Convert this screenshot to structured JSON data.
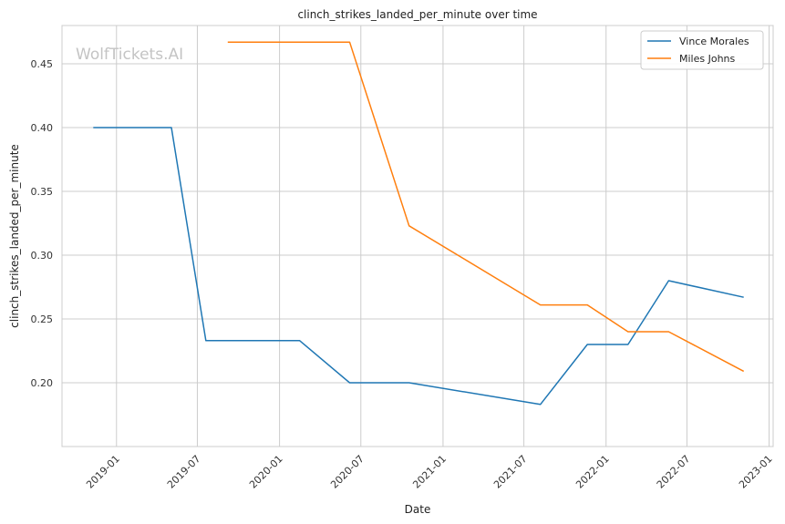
{
  "chart_data": {
    "type": "line",
    "title": "clinch_strikes_landed_per_minute over time",
    "xlabel": "Date",
    "ylabel": "clinch_strikes_landed_per_minute",
    "watermark": "WolfTickets.AI",
    "x_ticks": [
      "2019-01",
      "2019-07",
      "2020-01",
      "2020-07",
      "2021-01",
      "2021-07",
      "2022-01",
      "2022-07",
      "2023-01"
    ],
    "y_ticks": [
      "0.20",
      "0.25",
      "0.30",
      "0.35",
      "0.40",
      "0.45"
    ],
    "ylim": [
      0.15,
      0.48
    ],
    "xlim": [
      "2018-09-01",
      "2023-01-10"
    ],
    "grid": true,
    "legend_position": "top-right",
    "series": [
      {
        "name": "Vince Morales",
        "color": "#1f77b4",
        "points": [
          [
            "2018-11-10",
            0.4
          ],
          [
            "2019-05-04",
            0.4
          ],
          [
            "2019-07-20",
            0.233
          ],
          [
            "2020-02-15",
            0.233
          ],
          [
            "2020-06-06",
            0.2
          ],
          [
            "2020-10-17",
            0.2
          ],
          [
            "2021-08-07",
            0.183
          ],
          [
            "2021-11-20",
            0.23
          ],
          [
            "2022-02-19",
            0.23
          ],
          [
            "2022-05-21",
            0.28
          ],
          [
            "2022-11-05",
            0.267
          ]
        ]
      },
      {
        "name": "Miles Johns",
        "color": "#ff7f0e",
        "points": [
          [
            "2019-09-07",
            0.467
          ],
          [
            "2020-06-06",
            0.467
          ],
          [
            "2020-10-17",
            0.323
          ],
          [
            "2021-08-07",
            0.261
          ],
          [
            "2021-11-20",
            0.261
          ],
          [
            "2022-02-19",
            0.24
          ],
          [
            "2022-05-21",
            0.24
          ],
          [
            "2022-11-05",
            0.209
          ]
        ]
      }
    ]
  }
}
